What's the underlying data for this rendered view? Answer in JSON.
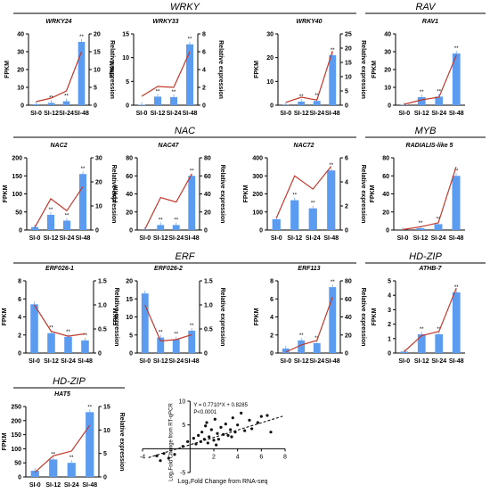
{
  "colors": {
    "bar": "#5b9bf0",
    "line": "#c0392b",
    "axis": "#000000",
    "group_line": "#000000"
  },
  "groups": [
    {
      "label": "WRKY"
    },
    {
      "label": "RAV"
    },
    {
      "label": "NAC"
    },
    {
      "label": "MYB"
    },
    {
      "label": "ERF"
    },
    {
      "label": "HD-ZIP"
    },
    {
      "label": "HD-ZIP"
    }
  ],
  "panel_text": {
    "left_axis": "FPKM",
    "right_axis": "Relative expression",
    "star": "**"
  },
  "chart_data": [
    {
      "type": "bar",
      "title": "WRKY24",
      "categories": [
        "SI-0",
        "SI-12",
        "SI-24",
        "SI-48"
      ],
      "ylabel": "FPKM",
      "y2label": "Relative expression",
      "values": [
        0.5,
        1.3,
        2.2,
        35.5
      ],
      "line": [
        1,
        2,
        4,
        15
      ],
      "ylim": [
        0,
        40
      ],
      "y2lim": [
        0,
        20
      ],
      "yticks": [
        "0",
        "10",
        "20",
        "30",
        "40"
      ],
      "y2ticks": [
        "0",
        "5",
        "10",
        "15",
        "20"
      ],
      "stars": [
        false,
        true,
        true,
        true
      ]
    },
    {
      "type": "bar",
      "title": "WRKY33",
      "categories": [
        "SI-0",
        "SI-12",
        "SI-24",
        "SI-48"
      ],
      "ylabel": "FPKM",
      "y2label": "Relative expression",
      "values": [
        0.1,
        1.8,
        1.7,
        12.8
      ],
      "line": [
        1,
        2.1,
        2,
        6
      ],
      "ylim": [
        0,
        15
      ],
      "y2lim": [
        0,
        8
      ],
      "yticks": [
        "0",
        "5",
        "10",
        "15"
      ],
      "y2ticks": [
        "0",
        "2",
        "4",
        "6",
        "8"
      ],
      "stars": [
        false,
        true,
        true,
        true
      ]
    },
    {
      "type": "bar",
      "title": "WRKY40",
      "categories": [
        "SI-0",
        "SI-12",
        "SI-24",
        "SI-48"
      ],
      "ylabel": "FPKM",
      "y2label": "Relative expression",
      "values": [
        0.1,
        1.5,
        1.8,
        21
      ],
      "line": [
        1,
        2.8,
        1.8,
        19
      ],
      "ylim": [
        0,
        30
      ],
      "y2lim": [
        0,
        25
      ],
      "yticks": [
        "0",
        "10",
        "20",
        "30"
      ],
      "y2ticks": [
        "0",
        "5",
        "10",
        "15",
        "20",
        "25"
      ],
      "stars": [
        false,
        true,
        true,
        true
      ]
    },
    {
      "type": "bar",
      "title": "RAV1",
      "categories": [
        "SI-0",
        "SI-12",
        "SI-24",
        "SI-48"
      ],
      "ylabel": "FPKM",
      "y2label": "",
      "values": [
        0.2,
        4.5,
        4.8,
        29
      ],
      "line": [
        0.5,
        3,
        4.5,
        28
      ],
      "ylim": [
        0,
        40
      ],
      "y2lim": [
        0,
        40
      ],
      "yticks": [
        "0",
        "10",
        "20",
        "30",
        "40"
      ],
      "y2ticks": [],
      "stars": [
        false,
        true,
        true,
        true
      ]
    },
    {
      "type": "bar",
      "title": "NAC2",
      "categories": [
        "SI-0",
        "SI-12",
        "SI-24",
        "SI-48"
      ],
      "ylabel": "FPKM",
      "y2label": "Relative expression",
      "values": [
        8,
        42,
        26,
        155
      ],
      "line": [
        1,
        13,
        8,
        18
      ],
      "ylim": [
        0,
        200
      ],
      "y2lim": [
        0,
        30
      ],
      "yticks": [
        "0",
        "50",
        "100",
        "150",
        "200"
      ],
      "y2ticks": [
        "0",
        "10",
        "20",
        "30"
      ],
      "stars": [
        false,
        true,
        true,
        true
      ]
    },
    {
      "type": "bar",
      "title": "NAC47",
      "categories": [
        "SI-0",
        "SI-12",
        "SI-24",
        "SI-48"
      ],
      "ylabel": "FPKM",
      "y2label": "Relative expression",
      "values": [
        0.1,
        5.5,
        5.5,
        60
      ],
      "line": [
        1,
        36,
        31,
        62
      ],
      "ylim": [
        0,
        80
      ],
      "y2lim": [
        0,
        80
      ],
      "yticks": [
        "0",
        "20",
        "40",
        "60",
        "80"
      ],
      "y2ticks": [
        "0",
        "20",
        "40",
        "60",
        "80"
      ],
      "stars": [
        false,
        true,
        true,
        true
      ]
    },
    {
      "type": "bar",
      "title": "NAC72",
      "categories": [
        "SI-0",
        "SI-12",
        "SI-24",
        "SI-48"
      ],
      "ylabel": "FPKM",
      "y2label": "Relative expression",
      "values": [
        60,
        165,
        120,
        330
      ],
      "line": [
        1,
        4.5,
        3.4,
        5.3
      ],
      "ylim": [
        0,
        400
      ],
      "y2lim": [
        0,
        6
      ],
      "yticks": [
        "0",
        "100",
        "200",
        "300",
        "400"
      ],
      "y2ticks": [
        "0",
        "2",
        "4",
        "6"
      ],
      "stars": [
        false,
        true,
        true,
        true
      ]
    },
    {
      "type": "bar",
      "title": "RADIALIS-like 5",
      "categories": [
        "SI-0",
        "SI-12",
        "SI-24",
        "SI-48"
      ],
      "ylabel": "FPKM",
      "y2label": "",
      "values": [
        0.1,
        2,
        6.5,
        60
      ],
      "line": [
        0.5,
        3.5,
        8,
        70
      ],
      "ylim": [
        0,
        80
      ],
      "y2lim": [
        0,
        80
      ],
      "yticks": [
        "0",
        "20",
        "40",
        "60",
        "80"
      ],
      "y2ticks": [],
      "stars": [
        false,
        true,
        true,
        true
      ]
    },
    {
      "type": "bar",
      "title": "ERF026-1",
      "categories": [
        "SI-0",
        "SI-12",
        "SI-24",
        "SI-48"
      ],
      "ylabel": "FPKM",
      "y2label": "Relative expression",
      "values": [
        5.4,
        2.2,
        1.8,
        1.4
      ],
      "line": [
        1,
        0.45,
        0.35,
        0.4
      ],
      "ylim": [
        0,
        8
      ],
      "y2lim": [
        0,
        1.5
      ],
      "yticks": [
        "0",
        "2",
        "4",
        "6",
        "8"
      ],
      "y2ticks": [
        "0",
        "0.5",
        "1.0",
        "1.5"
      ],
      "stars": [
        false,
        true,
        true,
        true
      ]
    },
    {
      "type": "bar",
      "title": "ERF026-2",
      "categories": [
        "SI-0",
        "SI-12",
        "SI-24",
        "SI-48"
      ],
      "ylabel": "FPKM",
      "y2label": "Relative expression",
      "values": [
        16.5,
        4.3,
        3.8,
        6.2
      ],
      "line": [
        1,
        0.25,
        0.28,
        0.38
      ],
      "ylim": [
        0,
        20
      ],
      "y2lim": [
        0,
        1.5
      ],
      "yticks": [
        "0",
        "5",
        "10",
        "15",
        "20"
      ],
      "y2ticks": [
        "0",
        "0.5",
        "1.0",
        "1.5"
      ],
      "stars": [
        false,
        true,
        true,
        true
      ]
    },
    {
      "type": "bar",
      "title": "ERF113",
      "categories": [
        "SI-0",
        "SI-12",
        "SI-24",
        "SI-48"
      ],
      "ylabel": "FPKM",
      "y2label": "Relative expression",
      "values": [
        0.5,
        1.4,
        1.1,
        7.3
      ],
      "line": [
        1,
        9,
        14,
        62
      ],
      "ylim": [
        0,
        8
      ],
      "y2lim": [
        0,
        80
      ],
      "yticks": [
        "0",
        "2",
        "4",
        "6",
        "8"
      ],
      "y2ticks": [
        "0",
        "20",
        "40",
        "60",
        "80"
      ],
      "stars": [
        false,
        true,
        true,
        true
      ]
    },
    {
      "type": "bar",
      "title": "ATHB-7",
      "categories": [
        "SI-0",
        "SI-12",
        "SI-24",
        "SI-48"
      ],
      "ylabel": "FPKM",
      "y2label": "",
      "values": [
        0.1,
        1.3,
        1.3,
        4.2
      ],
      "line": [
        0.1,
        1.2,
        1.5,
        4.5
      ],
      "ylim": [
        0,
        5
      ],
      "y2lim": [
        0,
        5
      ],
      "yticks": [
        "0",
        "1",
        "2",
        "3",
        "4",
        "5"
      ],
      "y2ticks": [],
      "stars": [
        false,
        true,
        true,
        true
      ]
    },
    {
      "type": "bar",
      "title": "HAT5",
      "categories": [
        "SI-0",
        "SI-12",
        "SI-24",
        "SI-48"
      ],
      "ylabel": "FPKM",
      "y2label": "Relative expression",
      "values": [
        22,
        62,
        50,
        230
      ],
      "line": [
        1,
        4.5,
        5.5,
        11
      ],
      "ylim": [
        0,
        250
      ],
      "y2lim": [
        0,
        15
      ],
      "yticks": [
        "0",
        "50",
        "100",
        "150",
        "200",
        "250"
      ],
      "y2ticks": [
        "0",
        "5",
        "10",
        "15"
      ],
      "stars": [
        false,
        true,
        true,
        true
      ]
    },
    {
      "type": "scatter",
      "title": "",
      "xlabel": "Log₂Fold Change from RNA-seq",
      "ylabel": "Log₂Fold Change from RT-qPCR",
      "xlim": [
        -4,
        8
      ],
      "ylim": [
        -5,
        10
      ],
      "xticks": [
        "-4",
        "2",
        "4",
        "6",
        "8"
      ],
      "yticks": [
        "-5",
        "5",
        "10"
      ],
      "equation": "Y = 0.7710*X + 0.8285",
      "pvalue": "P<0.0001",
      "fit": {
        "slope": 0.771,
        "intercept": 0.8285
      },
      "x": [
        -2.8,
        -2.5,
        -2.2,
        -1.8,
        -1.3,
        -0.6,
        -0.2,
        0.3,
        0.5,
        0.7,
        0.9,
        1.0,
        1.2,
        1.4,
        1.5,
        1.6,
        1.8,
        2.0,
        2.1,
        2.3,
        2.4,
        2.6,
        2.8,
        3.0,
        3.2,
        3.4,
        3.6,
        3.8,
        4.0,
        4.3,
        4.6,
        5.0,
        5.2,
        5.7,
        6.0,
        6.5,
        6.8,
        2.2,
        3.5,
        1.3
      ],
      "y": [
        -1.5,
        -2.5,
        -1.0,
        -2.0,
        -1.2,
        0.5,
        1.5,
        2.2,
        1.0,
        2.8,
        1.5,
        3.5,
        2.0,
        5.5,
        1.2,
        2.5,
        4.0,
        1.8,
        6.2,
        3.2,
        2.0,
        4.5,
        3.0,
        5.2,
        2.8,
        4.0,
        6.5,
        3.5,
        5.0,
        7.5,
        3.8,
        6.0,
        4.2,
        5.5,
        6.8,
        7.0,
        3.5,
        0.8,
        2.5,
        4.8
      ]
    }
  ]
}
